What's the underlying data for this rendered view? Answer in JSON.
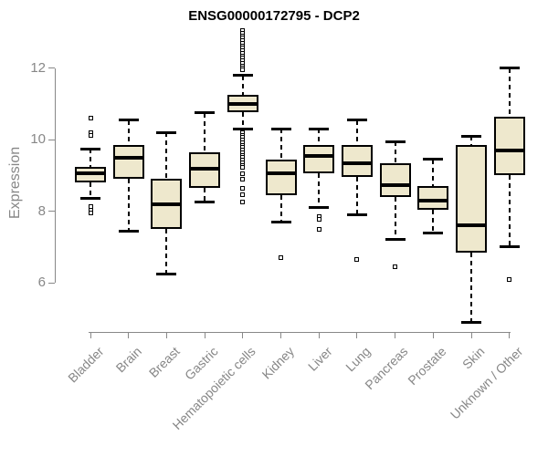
{
  "chart_data": {
    "type": "boxplot",
    "title": "ENSG00000172795 - DCP2",
    "ylabel": "Expression",
    "xlabel": "",
    "ylim": [
      6,
      12
    ],
    "yticks": [
      6,
      8,
      10,
      12
    ],
    "grid": false,
    "legend": "none",
    "box_fill": "#EEE8CD",
    "box_border": "#000000",
    "axis_color": "#888888",
    "label_color": "#878787",
    "title_color": "#000000",
    "categories": [
      "Bladder",
      "Brain",
      "Breast",
      "Gastric",
      "Hematopoietic cells",
      "Kidney",
      "Liver",
      "Lung",
      "Pancreas",
      "Prostate",
      "Skin",
      "Unknown / Other"
    ],
    "series": [
      {
        "category": "Bladder",
        "whisker_low": 8.35,
        "q1": 8.8,
        "median": 9.05,
        "q3": 9.25,
        "whisker_high": 9.75,
        "outliers": [
          10.6,
          10.2,
          10.12,
          8.13,
          8.04,
          7.94
        ]
      },
      {
        "category": "Brain",
        "whisker_low": 7.45,
        "q1": 8.9,
        "median": 9.5,
        "q3": 9.85,
        "whisker_high": 10.55,
        "outliers": []
      },
      {
        "category": "Breast",
        "whisker_low": 6.25,
        "q1": 7.5,
        "median": 8.2,
        "q3": 8.9,
        "whisker_high": 10.2,
        "outliers": []
      },
      {
        "category": "Gastric",
        "whisker_low": 8.25,
        "q1": 8.65,
        "median": 9.2,
        "q3": 9.65,
        "whisker_high": 10.75,
        "outliers": []
      },
      {
        "category": "Hematopoietic cells",
        "whisker_low": 10.3,
        "q1": 10.78,
        "median": 11.0,
        "q3": 11.25,
        "whisker_high": 11.8,
        "outliers": [
          13.05,
          12.98,
          12.91,
          12.84,
          12.77,
          12.7,
          12.63,
          12.56,
          12.49,
          12.42,
          12.35,
          12.28,
          12.21,
          12.14,
          12.07,
          12.0,
          11.95,
          10.2,
          10.13,
          10.06,
          9.99,
          9.92,
          9.85,
          9.78,
          9.71,
          9.64,
          9.57,
          9.5,
          9.43,
          9.36,
          9.29,
          9.22,
          9.06,
          8.89,
          8.63,
          8.47,
          8.25
        ]
      },
      {
        "category": "Kidney",
        "whisker_low": 7.7,
        "q1": 8.45,
        "median": 9.05,
        "q3": 9.45,
        "whisker_high": 10.3,
        "outliers": [
          6.7
        ]
      },
      {
        "category": "Liver",
        "whisker_low": 8.1,
        "q1": 9.05,
        "median": 9.55,
        "q3": 9.85,
        "whisker_high": 10.3,
        "outliers": [
          7.85,
          7.78,
          7.5
        ]
      },
      {
        "category": "Lung",
        "whisker_low": 7.9,
        "q1": 8.95,
        "median": 9.35,
        "q3": 9.85,
        "whisker_high": 10.55,
        "outliers": [
          6.65
        ]
      },
      {
        "category": "Pancreas",
        "whisker_low": 7.2,
        "q1": 8.4,
        "median": 8.72,
        "q3": 9.35,
        "whisker_high": 9.95,
        "outliers": [
          6.45
        ]
      },
      {
        "category": "Prostate",
        "whisker_low": 7.4,
        "q1": 8.05,
        "median": 8.3,
        "q3": 8.7,
        "whisker_high": 9.45,
        "outliers": []
      },
      {
        "category": "Skin",
        "whisker_low": 4.9,
        "q1": 6.85,
        "median": 7.6,
        "q3": 9.85,
        "whisker_high": 10.1,
        "outliers": []
      },
      {
        "category": "Unknown / Other",
        "whisker_low": 7.0,
        "q1": 9.0,
        "median": 9.7,
        "q3": 10.65,
        "whisker_high": 12.0,
        "outliers": [
          6.1
        ]
      }
    ]
  }
}
